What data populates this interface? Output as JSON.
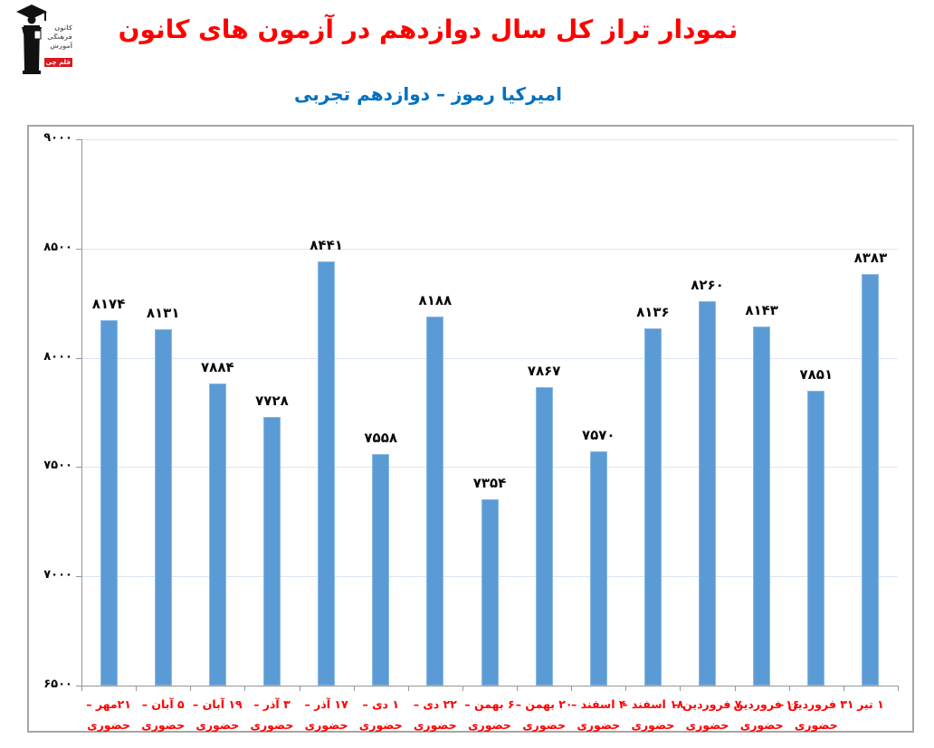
{
  "header": {
    "title": "نمودار تراز کل سال دوازدهم در آزمون های کانون",
    "subtitle": "امیرکیا رموز – دوازدهم تجربی"
  },
  "logo": {
    "name": "کانون فرهنگی آموزش قلم چی",
    "lines": [
      "کانون",
      "فرهنگی",
      "آموزش",
      "قلم چی"
    ]
  },
  "colors": {
    "title": "#FF0000",
    "subtitle": "#0070C0",
    "bar_fill": "#5B9BD5",
    "bar_border": "#8AB9E3",
    "gridline": "#DAE6F3",
    "axis": "#969696",
    "frame_border": "#A6A6A6",
    "value_label": "#0A0A0A",
    "x_label": "#FF0000",
    "logo_accent": "#D71920"
  },
  "chart_data": {
    "type": "bar",
    "title": "نمودار تراز کل سال دوازدهم در آزمون های کانون",
    "subtitle": "امیرکیا رموز – دوازدهم تجربی",
    "xlabel": "",
    "ylabel": "",
    "ylim": [
      6500,
      9000
    ],
    "yticks": [
      9000,
      8500,
      8000,
      7500,
      7000,
      6500
    ],
    "ytick_labels": [
      "۹۰۰۰",
      "۸۵۰۰",
      "۸۰۰۰",
      "۷۵۰۰",
      "۷۰۰۰",
      "۶۵۰۰"
    ],
    "grid": "horizontal",
    "legend": "none",
    "categories": [
      "۲۱مهر – حضوری",
      "۵ آبان – حضوری",
      "۱۹ آبان – حضوری",
      "۳ آذر – حضوری",
      "۱۷ آذر – حضوری",
      "۱ دی – حضوری",
      "۲۲ دی – حضوری",
      "۶ بهمن – حضوری",
      "۲۰ بهمن – حضوری",
      "۴ اسفند – حضوری",
      "۱۸ اسفند – حضوری",
      "۷ فروردین – حضوری",
      "۱۶ فروردین – حضوری",
      "۳۱ فروردین – حضوری",
      "۱ تیر"
    ],
    "category_line1": [
      "۲۱مهر –",
      "۵ آبان –",
      "۱۹ آبان –",
      "۳ آذر –",
      "۱۷ آذر –",
      "۱ دی –",
      "۲۲ دی –",
      "۶ بهمن –",
      "۲۰ بهمن –",
      "۴ اسفند –",
      "۱۸ اسفند –",
      "۷ فروردین –",
      "۱۶ فروردین –",
      "۳۱ فروردین –",
      "۱ تیر"
    ],
    "category_line2": [
      "حضوری",
      "حضوری",
      "حضوری",
      "حضوری",
      "حضوری",
      "حضوری",
      "حضوری",
      "حضوری",
      "حضوری",
      "حضوری",
      "حضوری",
      "حضوری",
      "حضوری",
      "حضوری",
      ""
    ],
    "values": [
      8174,
      8131,
      7884,
      7728,
      8441,
      7558,
      8188,
      7354,
      7867,
      7570,
      8136,
      8260,
      8143,
      7851,
      8383
    ],
    "value_labels": [
      "۸۱۷۴",
      "۸۱۳۱",
      "۷۸۸۴",
      "۷۷۲۸",
      "۸۴۴۱",
      "۷۵۵۸",
      "۸۱۸۸",
      "۷۳۵۴",
      "۷۸۶۷",
      "۷۵۷۰",
      "۸۱۳۶",
      "۸۲۶۰",
      "۸۱۴۳",
      "۷۸۵۱",
      "۸۳۸۳"
    ]
  }
}
